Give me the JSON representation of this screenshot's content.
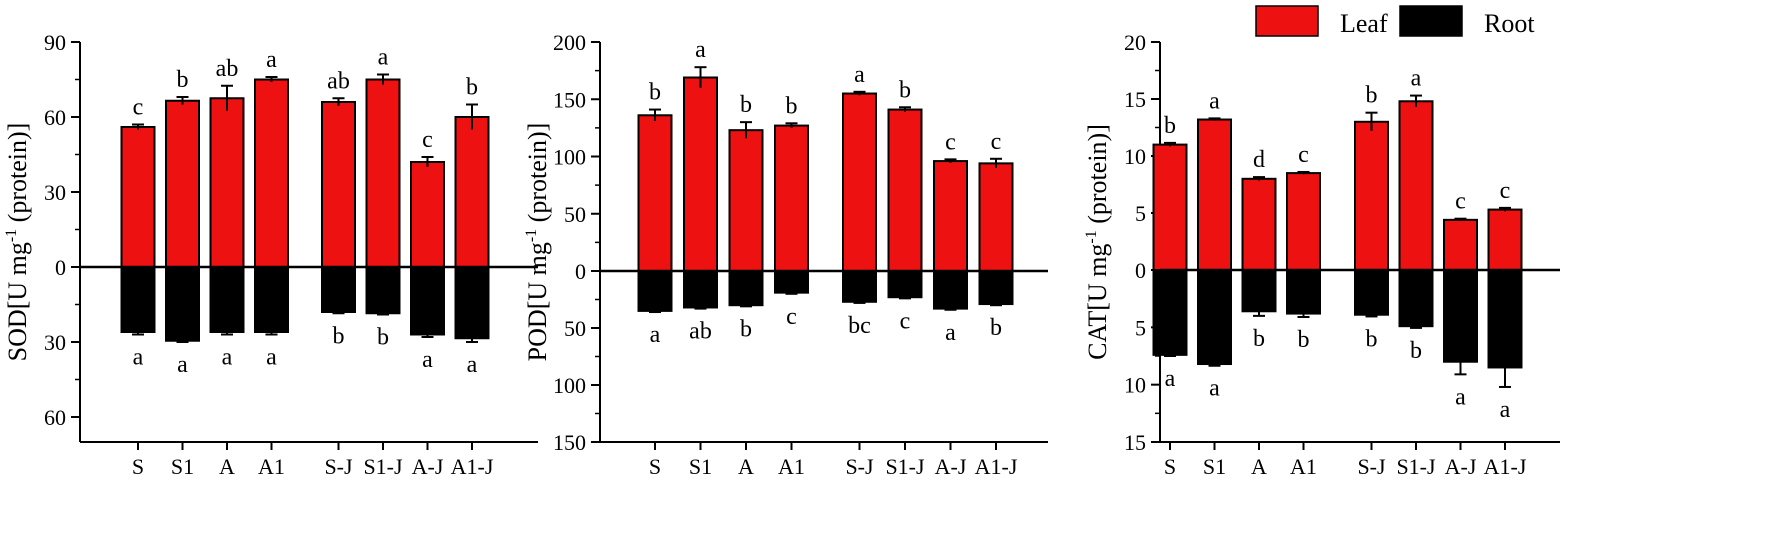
{
  "legend": {
    "placement": "top-right",
    "items": [
      {
        "label": "Leaf",
        "color": "#ee1111"
      },
      {
        "label": "Root",
        "color": "#000000"
      }
    ]
  },
  "colors": {
    "leaf": "#ee1111",
    "root": "#000000"
  },
  "chart_data": [
    {
      "type": "bar",
      "ylabel_main": "SOD",
      "ylabel_unit": "[U mg",
      "ylabel_exp": "-1",
      "ylabel_tail": " (protein)]",
      "categories": [
        "S",
        "S1",
        "A",
        "A1",
        "S-J",
        "S1-J",
        "A-J",
        "A1-J"
      ],
      "ylim_up": 90,
      "ylim_down": 70,
      "ticks_up": [
        90,
        60,
        30,
        0
      ],
      "ticks_down": [
        30,
        60
      ],
      "series": [
        {
          "name": "Leaf",
          "values": [
            56,
            66.5,
            67.5,
            75,
            66,
            75,
            42,
            60
          ],
          "errors": [
            1,
            1.5,
            5,
            1,
            1.5,
            2,
            2,
            5
          ],
          "letters": [
            "c",
            "b",
            "ab",
            "a",
            "ab",
            "a",
            "c",
            "b"
          ]
        },
        {
          "name": "Root",
          "values": [
            26,
            29.5,
            26,
            26,
            18,
            18.5,
            27,
            28.5
          ],
          "errors": [
            1,
            0.5,
            1,
            1,
            0.5,
            0.5,
            1,
            1.5
          ],
          "letters": [
            "a",
            "a",
            "a",
            "a",
            "b",
            "b",
            "a",
            "a"
          ]
        }
      ]
    },
    {
      "type": "bar",
      "ylabel_main": "POD",
      "ylabel_unit": "[U mg",
      "ylabel_exp": "-1",
      "ylabel_tail": " (protein)]",
      "categories": [
        "S",
        "S1",
        "A",
        "A1",
        "S-J",
        "S1-J",
        "A-J",
        "A1-J"
      ],
      "ylim_up": 200,
      "ylim_down": 150,
      "ticks_up": [
        200,
        150,
        100,
        50,
        0
      ],
      "ticks_down": [
        50,
        100,
        150
      ],
      "series": [
        {
          "name": "Leaf",
          "values": [
            136,
            169,
            123,
            127,
            155,
            141,
            96,
            94
          ],
          "errors": [
            5,
            9,
            7,
            2,
            1.5,
            2,
            1.5,
            4
          ],
          "letters": [
            "b",
            "a",
            "b",
            "b",
            "a",
            "b",
            "c",
            "c"
          ]
        },
        {
          "name": "Root",
          "values": [
            35,
            32,
            30,
            19,
            27,
            23,
            33,
            29
          ],
          "errors": [
            1,
            1,
            1,
            1,
            1,
            1,
            1,
            1
          ],
          "letters": [
            "a",
            "ab",
            "b",
            "c",
            "bc",
            "c",
            "a",
            "b"
          ]
        }
      ]
    },
    {
      "type": "bar",
      "ylabel_main": "CAT",
      "ylabel_unit": "[U mg",
      "ylabel_exp": "-1",
      "ylabel_tail": " (protein)]",
      "categories": [
        "S",
        "S1",
        "A",
        "A1",
        "S-J",
        "S1-J",
        "A-J",
        "A1-J"
      ],
      "ylim_up": 20,
      "ylim_down": 15,
      "ticks_up": [
        20,
        15,
        10,
        5,
        0
      ],
      "ticks_down": [
        5,
        10,
        15
      ],
      "series": [
        {
          "name": "Leaf",
          "values": [
            11,
            13.2,
            8,
            8.5,
            13,
            14.8,
            4.4,
            5.3
          ],
          "errors": [
            0.15,
            0.1,
            0.15,
            0.1,
            0.8,
            0.5,
            0.1,
            0.15
          ],
          "letters": [
            "b",
            "a",
            "d",
            "c",
            "b",
            "a",
            "c",
            "c"
          ]
        },
        {
          "name": "Root",
          "values": [
            7.4,
            8.2,
            3.6,
            3.8,
            3.9,
            4.9,
            8,
            8.5
          ],
          "errors": [
            0.1,
            0.15,
            0.4,
            0.3,
            0.15,
            0.15,
            1.1,
            1.7
          ],
          "letters": [
            "a",
            "a",
            "b",
            "b",
            "b",
            "b",
            "a",
            "a"
          ]
        }
      ]
    }
  ]
}
